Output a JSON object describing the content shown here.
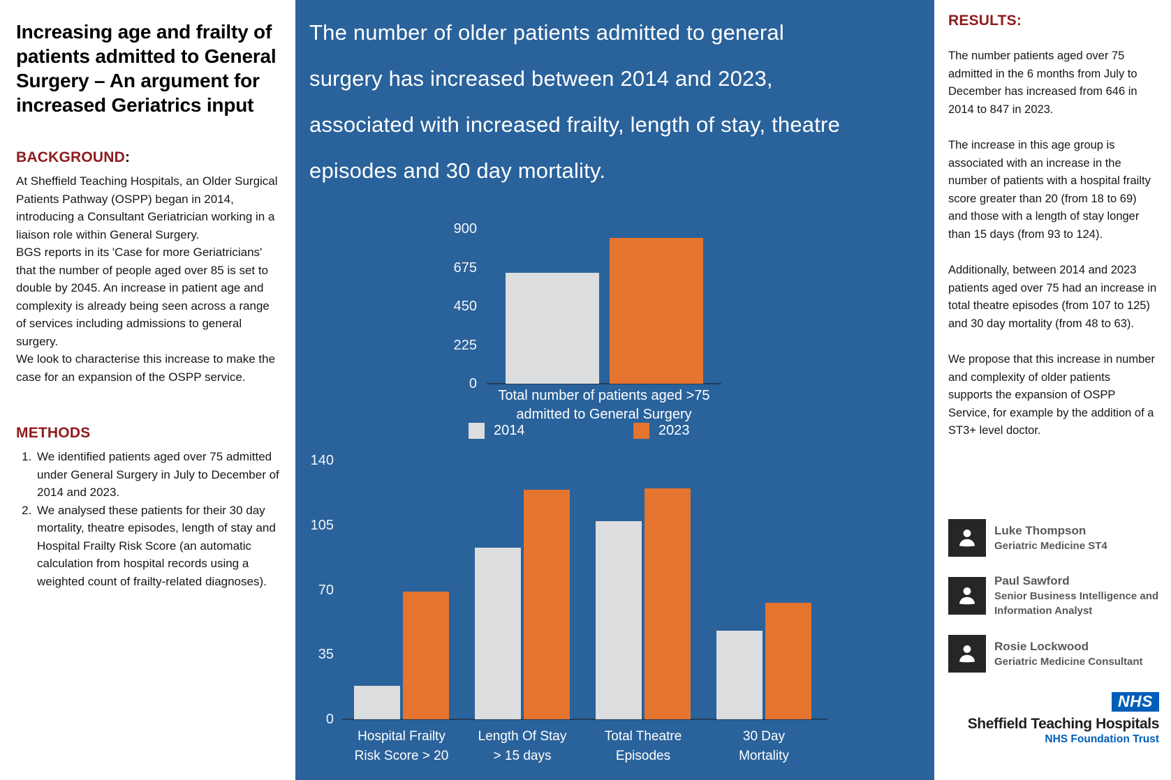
{
  "colors": {
    "panel_blue": "#2A629B",
    "accent_orange": "#E5742F",
    "bar_gray": "#DCDDDE",
    "heading_maroon": "#8E1B1E",
    "nhs_blue": "#005EB8",
    "author_text_gray": "#58595B",
    "avatar_black": "#262626",
    "chart_text_white": "#FFFFFF"
  },
  "left": {
    "title": "Increasing age and frailty of patients admitted to General Surgery – An argument for increased Geriatrics input",
    "background_heading": "BACKGROUND",
    "background_colon": ":",
    "background_paragraphs": [
      "At Sheffield Teaching Hospitals, an Older Surgical Patients Pathway (OSPP) began in 2014, introducing a Consultant Geriatrician working in a liaison role within General Surgery.",
      "BGS reports in its 'Case for more Geriatricians' that the number of people aged over 85 is set to double by 2045. An increase in patient age and complexity is already being seen across a range of services including admissions to general surgery.",
      "We look to characterise this increase to make the case for an expansion of the OSPP service."
    ],
    "methods_heading": "METHODS",
    "methods_items": [
      "We identified patients aged over 75 admitted under General Surgery in July to December of 2014 and 2023.",
      "We analysed these patients for their 30 day mortality, theatre episodes, length of stay and Hospital Frailty Risk Score (an automatic calculation from hospital records using a weighted count of frailty-related diagnoses)."
    ]
  },
  "center": {
    "headline": "The number of older patients admitted to general surgery has increased between 2014 and 2023, associated with increased frailty, length of stay, theatre episodes and 30 day mortality."
  },
  "right": {
    "results_heading": "RESULTS:",
    "paragraphs": [
      "The number patients aged over 75 admitted in the 6 months from July to December has increased from 646 in 2014 to 847 in 2023.",
      "The increase in this age group is associated with an increase in the number of patients with a hospital frailty score greater than 20 (from 18 to 69) and those with a length of stay longer than 15 days (from 93 to 124).",
      "Additionally, between 2014 and 2023 patients aged over 75 had an increase in total theatre episodes (from 107 to 125) and 30 day mortality (from 48 to 63).",
      "We propose that this increase in number and complexity of older patients supports the expansion of OSPP Service, for example by the addition of a ST3+ level doctor."
    ],
    "authors": [
      {
        "name": "Luke Thompson",
        "role": "Geriatric Medicine ST4"
      },
      {
        "name": "Paul Sawford",
        "role": "Senior Business Intelligence and Information Analyst"
      },
      {
        "name": "Rosie Lockwood",
        "role": "Geriatric Medicine Consultant"
      }
    ],
    "logo": {
      "wordmark": "NHS",
      "org": "Sheffield Teaching Hospitals",
      "sub": "NHS Foundation Trust"
    }
  },
  "chart_data": [
    {
      "type": "bar",
      "title": "Total number of patients aged >75 admitted to General Surgery",
      "xlabel_lines": [
        "Total number of patients aged >75",
        "admitted to General Surgery"
      ],
      "categories": [
        "Total number of patients aged >75 admitted to General Surgery"
      ],
      "series": [
        {
          "name": "2014",
          "color": "#DCDDDE",
          "values": [
            646
          ]
        },
        {
          "name": "2023",
          "color": "#E5742F",
          "values": [
            847
          ]
        }
      ],
      "ylim": [
        0,
        900
      ],
      "yticks": [
        0,
        225,
        450,
        675,
        900
      ],
      "grid": false,
      "legend_position": "below-title"
    },
    {
      "type": "bar",
      "title": "",
      "categories_lines": [
        [
          "Hospital Frailty",
          "Risk Score > 20"
        ],
        [
          "Length Of Stay",
          "> 15 days"
        ],
        [
          "Total Theatre",
          "Episodes"
        ],
        [
          "30 Day",
          "Mortality"
        ]
      ],
      "categories": [
        "Hospital Frailty Risk Score > 20",
        "Length Of Stay > 15 days",
        "Total Theatre Episodes",
        "30 Day Mortality"
      ],
      "series": [
        {
          "name": "2014",
          "color": "#DCDDDE",
          "values": [
            18,
            93,
            107,
            48
          ]
        },
        {
          "name": "2023",
          "color": "#E5742F",
          "values": [
            69,
            124,
            125,
            63
          ]
        }
      ],
      "ylim": [
        0,
        140
      ],
      "yticks": [
        0,
        35,
        70,
        105,
        140
      ],
      "grid": false,
      "legend_position": "shared-above"
    }
  ]
}
